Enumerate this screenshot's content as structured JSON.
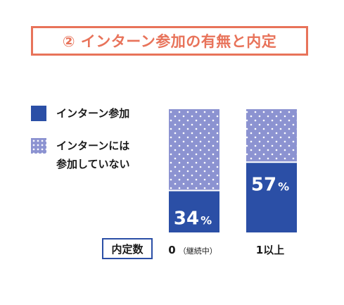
{
  "chart_data": {
    "type": "bar",
    "stacked": true,
    "percent": true,
    "title": "② インターン参加の有無と内定",
    "xlabel": "内定数",
    "categories": [
      "0",
      "1以上"
    ],
    "category_notes": [
      "（継続中）",
      ""
    ],
    "series": [
      {
        "name": "インターン参加",
        "values": [
          34,
          57
        ],
        "color": "#2b4fa6",
        "pattern": "solid"
      },
      {
        "name": "インターンには参加していない",
        "values": [
          66,
          43
        ],
        "color": "#8c93d1",
        "pattern": "dotted"
      }
    ],
    "value_labels": [
      "34",
      "57"
    ],
    "value_unit": "%",
    "ylim": [
      0,
      100
    ],
    "grid": false,
    "legend_position": "left"
  },
  "legend": {
    "item1": "インターン参加",
    "item2_line1": "インターンには",
    "item2_line2": "参加していない"
  },
  "colors": {
    "accent": "#e8735a",
    "participated": "#2b4fa6",
    "not_participated": "#8c93d1"
  }
}
